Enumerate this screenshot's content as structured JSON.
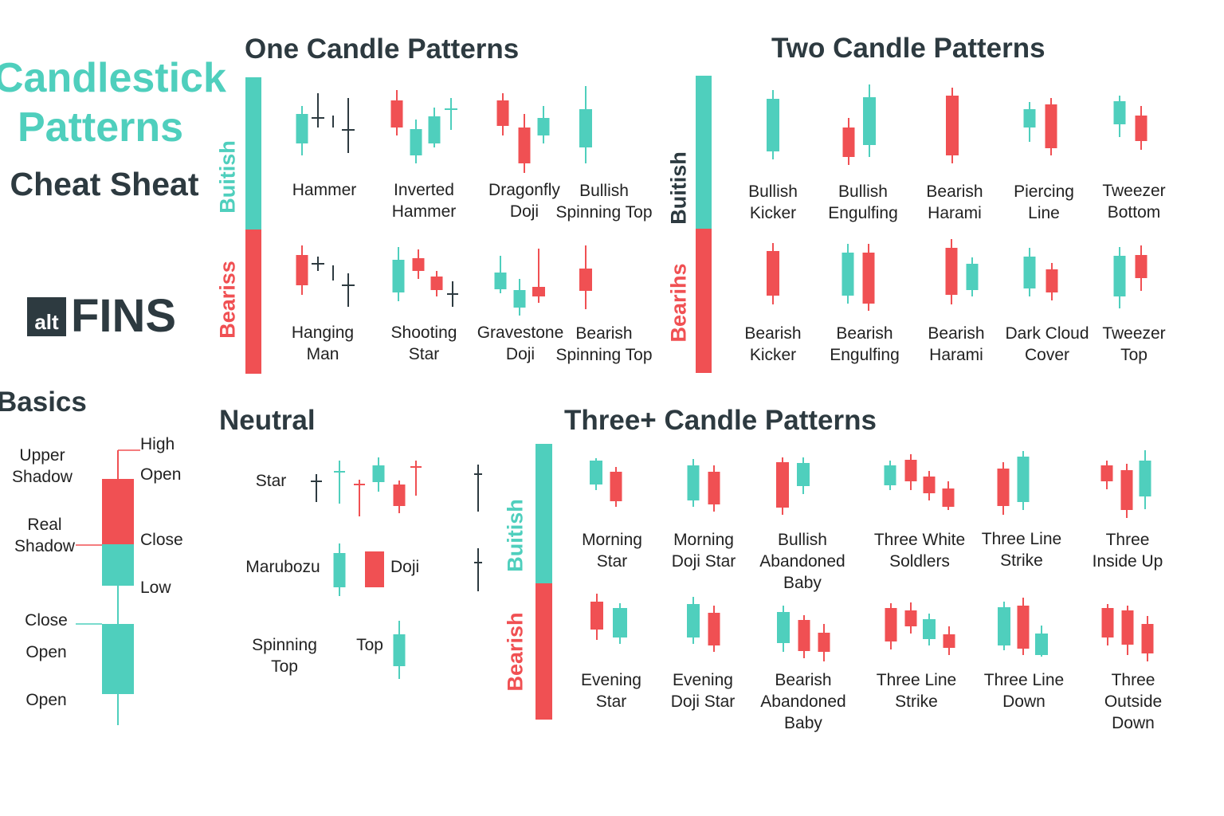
{
  "colors": {
    "bullish": "#4fcfbd",
    "bearish": "#f05053",
    "neutral": "#2d3a40"
  },
  "header": {
    "title_line1": "Candlestick",
    "title_line2": "Patterns",
    "subtitle": "Cheat Sheat",
    "logo": {
      "alt": "alt",
      "fins": "FINS"
    }
  },
  "one_candle": {
    "title": "One Candle Patterns",
    "bullish_label": "Buitish",
    "bearish_label": "Beariss",
    "bullish_patterns": [
      "Hammer",
      "Inverted\nHammer",
      "Dragonfly\nDoji",
      "Bullish\nSpinning Top"
    ],
    "bearish_patterns": [
      "Hanging\nMan",
      "Shooting\nStar",
      "Gravestone\nDoji",
      "Bearish\nSpinning Top"
    ]
  },
  "two_candle": {
    "title": "Two Candle Patterns",
    "bullish_label": "Buitish",
    "bearish_label": "Bearihs",
    "bullish_patterns": [
      "Bullish\nKicker",
      "Bullish\nEngulfing",
      "Bearish\nHarami",
      "Piercing\nLine",
      "Tweezer\nBottom"
    ],
    "bearish_patterns": [
      "Bearish\nKicker",
      "Bearish\nEngulfing",
      "Bearish\nHarami",
      "Dark Cloud\nCover",
      "Tweezer\nTop"
    ]
  },
  "basics": {
    "title": "Basics",
    "upper_shadow": "Upper\nShadow",
    "real_shadow": "Real\nShadow",
    "close_left": "Close",
    "open_left_1": "Open",
    "open_left_2": "Open",
    "high": "High",
    "open_right": "Open",
    "close_right": "Close",
    "low": "Low"
  },
  "neutral": {
    "title": "Neutral",
    "star": "Star",
    "marubozu": "Marubozu",
    "doji": "Doji",
    "spinning_top": "Spinning\nTop",
    "top": "Top"
  },
  "three_candle": {
    "title": "Three+ Candle Patterns",
    "bullish_label": "Buitish",
    "bearish_label": "Bearish",
    "bullish_patterns": [
      "Morning\nStar",
      "Morning\nDoji Star",
      "Bullish\nAbandoned\nBaby",
      "Three White\nSoldlers",
      "Three Line\nStrike",
      "Three\nInside Up"
    ],
    "bearish_patterns": [
      "Evening\nStar",
      "Evening\nDoji Star",
      "Bearish\nAbandoned\nBaby",
      "Three Line\nStrike",
      "Three Line\nDown",
      "Three\nOutside Down"
    ]
  }
}
